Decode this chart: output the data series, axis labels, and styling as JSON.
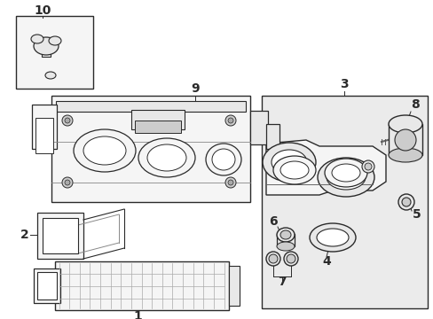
{
  "bg_color": "#ffffff",
  "line_color": "#2a2a2a",
  "light_fill": "#f5f5f5",
  "mid_fill": "#e8e8e8",
  "dark_fill": "#cccccc",
  "box_fill": "#ebebeb",
  "figsize": [
    4.89,
    3.6
  ],
  "dpi": 100,
  "xlim": [
    0,
    489
  ],
  "ylim": [
    0,
    360
  ]
}
